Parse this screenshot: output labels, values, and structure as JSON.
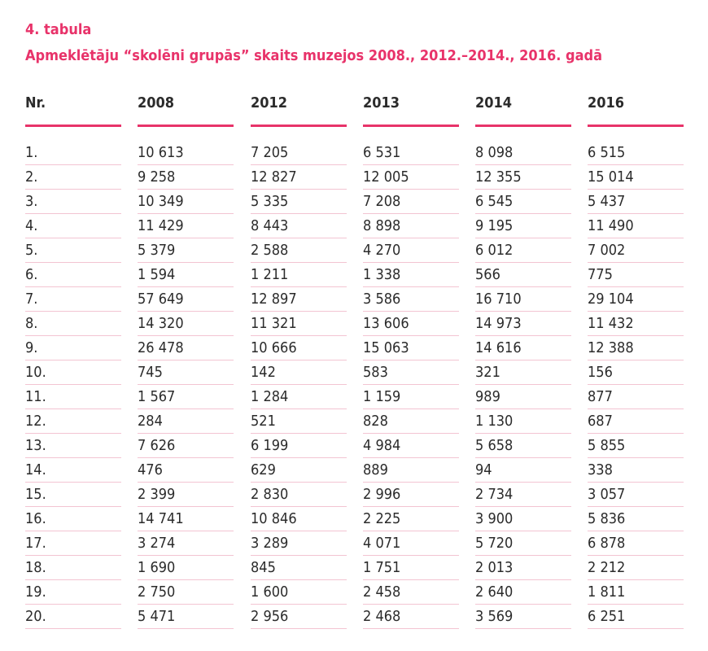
{
  "caption": {
    "number": "4. tabula",
    "title": "Apmeklētāju “skolēni grupās” skaits muzejos 2008., 2012.–2014., 2016. gadā"
  },
  "table": {
    "headers": [
      "Nr.",
      "2008",
      "2012",
      "2013",
      "2014",
      "2016"
    ],
    "rows": [
      [
        "1.",
        "10 613",
        "7 205",
        "6 531",
        "8 098",
        "6 515"
      ],
      [
        "2.",
        "9 258",
        "12 827",
        "12 005",
        "12 355",
        "15 014"
      ],
      [
        "3.",
        "10 349",
        "5 335",
        "7 208",
        "6 545",
        "5 437"
      ],
      [
        "4.",
        "11 429",
        "8 443",
        "8 898",
        "9 195",
        "11 490"
      ],
      [
        "5.",
        "5 379",
        "2 588",
        "4 270",
        "6 012",
        "7 002"
      ],
      [
        "6.",
        "1 594",
        "1 211",
        "1 338",
        "566",
        "775"
      ],
      [
        "7.",
        "57 649",
        "12 897",
        "3 586",
        "16 710",
        "29 104"
      ],
      [
        "8.",
        "14 320",
        "11 321",
        "13 606",
        "14 973",
        "11 432"
      ],
      [
        "9.",
        "26 478",
        "10 666",
        "15 063",
        "14 616",
        "12 388"
      ],
      [
        "10.",
        "745",
        "142",
        "583",
        "321",
        "156"
      ],
      [
        "11.",
        "1 567",
        "1 284",
        "1 159",
        "989",
        "877"
      ],
      [
        "12.",
        "284",
        "521",
        "828",
        "1 130",
        "687"
      ],
      [
        "13.",
        "7 626",
        "6 199",
        "4 984",
        "5 658",
        "5 855"
      ],
      [
        "14.",
        "476",
        "629",
        "889",
        "94",
        "338"
      ],
      [
        "15.",
        "2 399",
        "2 830",
        "2 996",
        "2 734",
        "3 057"
      ],
      [
        "16.",
        "14 741",
        "10 846",
        "2 225",
        "3 900",
        "5 836"
      ],
      [
        "17.",
        "3 274",
        "3 289",
        "4 071",
        "5 720",
        "6 878"
      ],
      [
        "18.",
        "1 690",
        "845",
        "1 751",
        "2 013",
        "2 212"
      ],
      [
        "19.",
        "2 750",
        "1 600",
        "2 458",
        "2 640",
        "1 811"
      ],
      [
        "20.",
        "5 471",
        "2 956",
        "2 468",
        "3 569",
        "6 251"
      ]
    ]
  },
  "colors": {
    "accent": "#e8336a",
    "row_divider": "#f3c4d2",
    "text": "#2b2b2b"
  }
}
